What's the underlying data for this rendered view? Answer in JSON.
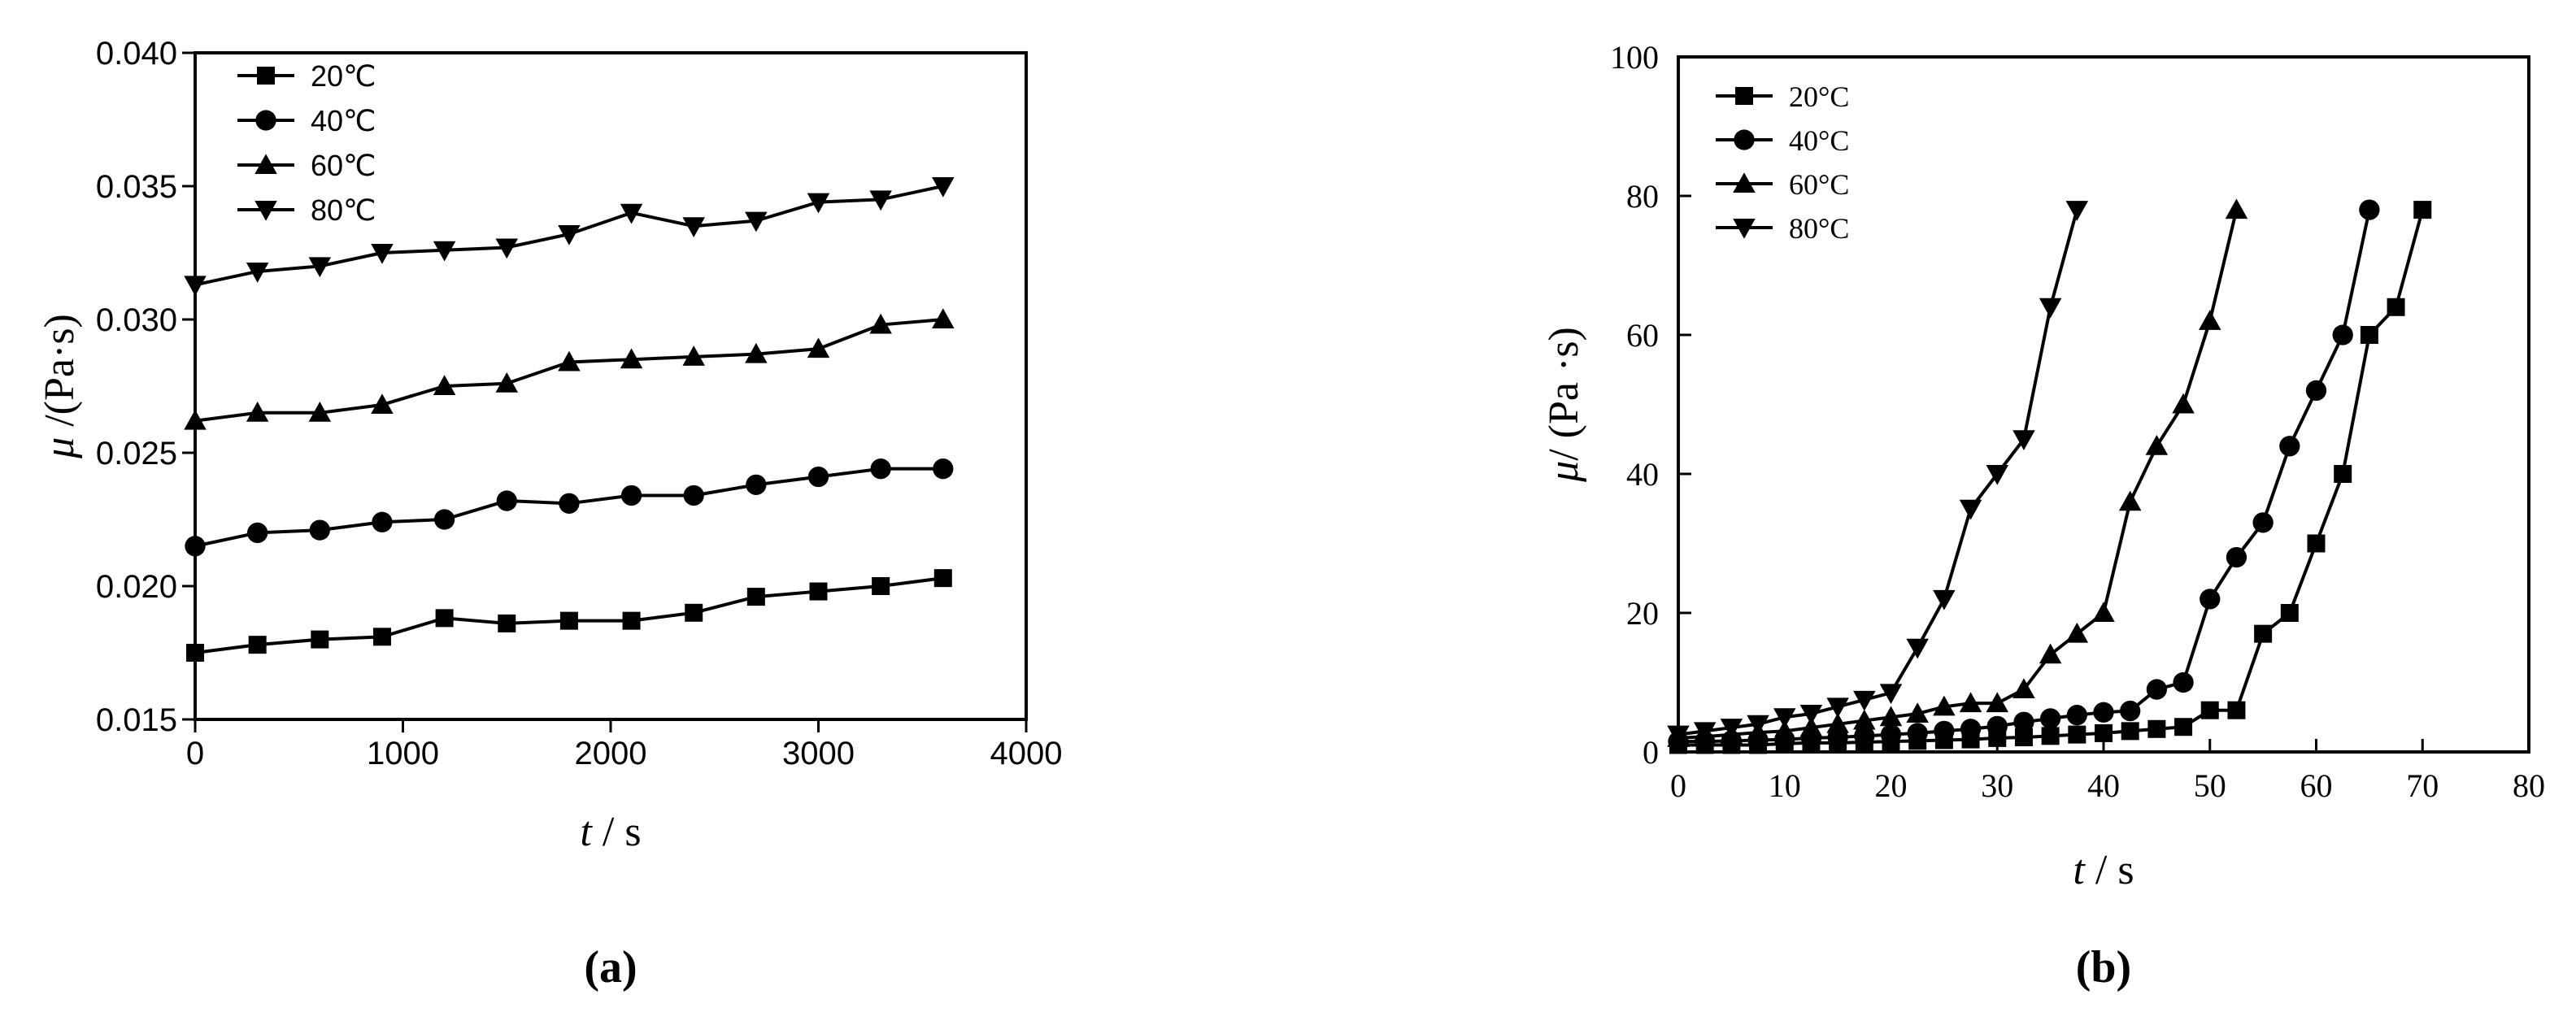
{
  "chart_data": [
    {
      "type": "line",
      "panel_label": "(a)",
      "xlabel_var": "t",
      "xlabel_unit": " / s",
      "ylabel_var": "μ",
      "ylabel_unit": " /(Pa·s)",
      "xlim": [
        0,
        4000
      ],
      "ylim": [
        0.015,
        0.04
      ],
      "xticks": [
        0,
        1000,
        2000,
        3000,
        4000
      ],
      "xtick_labels": [
        "0",
        "1000",
        "2000",
        "3000",
        "4000"
      ],
      "yticks": [
        0.015,
        0.02,
        0.025,
        0.03,
        0.035,
        0.04
      ],
      "ytick_labels": [
        "0.015",
        "0.020",
        "0.025",
        "0.030",
        "0.035",
        "0.040"
      ],
      "grid": false,
      "legend_position": "top-left",
      "x": [
        0,
        300,
        600,
        900,
        1200,
        1500,
        1800,
        2100,
        2400,
        2700,
        3000,
        3300,
        3600
      ],
      "series": [
        {
          "name": "20℃",
          "marker": "square",
          "values": [
            0.0175,
            0.0178,
            0.018,
            0.0181,
            0.0188,
            0.0186,
            0.0187,
            0.0187,
            0.019,
            0.0196,
            0.0198,
            0.02,
            0.0203
          ]
        },
        {
          "name": "40℃",
          "marker": "circle",
          "values": [
            0.0215,
            0.022,
            0.0221,
            0.0224,
            0.0225,
            0.0232,
            0.0231,
            0.0234,
            0.0234,
            0.0238,
            0.0241,
            0.0244,
            0.0244
          ]
        },
        {
          "name": "60℃",
          "marker": "triangle-up",
          "values": [
            0.0262,
            0.0265,
            0.0265,
            0.0268,
            0.0275,
            0.0276,
            0.0284,
            0.0285,
            0.0286,
            0.0287,
            0.0289,
            0.0298,
            0.03
          ]
        },
        {
          "name": "80℃",
          "marker": "triangle-down",
          "values": [
            0.0313,
            0.0318,
            0.032,
            0.0325,
            0.0326,
            0.0327,
            0.0332,
            0.034,
            0.0335,
            0.0337,
            0.0344,
            0.0345,
            0.035
          ]
        }
      ]
    },
    {
      "type": "line",
      "panel_label": "(b)",
      "xlabel_var": "t",
      "xlabel_unit": " / s",
      "ylabel_var": "μ",
      "ylabel_unit": "/ (Pa ·s)",
      "xlim": [
        0,
        80
      ],
      "ylim": [
        0,
        100
      ],
      "xticks": [
        0,
        10,
        20,
        30,
        40,
        50,
        60,
        70,
        80
      ],
      "xtick_labels": [
        "0",
        "10",
        "20",
        "30",
        "40",
        "50",
        "60",
        "70",
        "80"
      ],
      "yticks": [
        0,
        20,
        40,
        60,
        80,
        100
      ],
      "ytick_labels": [
        "0",
        "20",
        "40",
        "60",
        "80",
        "100"
      ],
      "grid": false,
      "legend_position": "top-left",
      "series": [
        {
          "name": "20°C",
          "marker": "square",
          "x": [
            0,
            2.5,
            5,
            7.5,
            10,
            12.5,
            15,
            17.5,
            20,
            22.5,
            25,
            27.5,
            30,
            32.5,
            35,
            37.5,
            40,
            42.5,
            45,
            47.5,
            50,
            52.5,
            55,
            57.5,
            60,
            62.5,
            65,
            67.5,
            70
          ],
          "values": [
            1,
            1,
            1,
            1,
            1.2,
            1.3,
            1.3,
            1.4,
            1.5,
            1.6,
            1.7,
            1.8,
            2,
            2.1,
            2.3,
            2.5,
            2.7,
            3,
            3.3,
            3.6,
            6,
            6,
            17,
            20,
            30,
            40,
            60,
            64,
            78
          ]
        },
        {
          "name": "40°C",
          "marker": "circle",
          "x": [
            0,
            2.5,
            5,
            7.5,
            10,
            12.5,
            15,
            17.5,
            20,
            22.5,
            25,
            27.5,
            30,
            32.5,
            35,
            37.5,
            40,
            42.5,
            45,
            47.5,
            50,
            52.5,
            55,
            57.5,
            60,
            62.5,
            65
          ],
          "values": [
            1.5,
            1.5,
            1.6,
            1.7,
            1.8,
            2,
            2.1,
            2.3,
            2.5,
            2.7,
            3,
            3.3,
            3.7,
            4.3,
            4.8,
            5.3,
            5.7,
            5.9,
            9,
            10,
            22,
            28,
            33,
            44,
            52,
            60,
            78
          ]
        },
        {
          "name": "60°C",
          "marker": "triangle-up",
          "x": [
            0,
            2.5,
            5,
            7.5,
            10,
            12.5,
            15,
            17.5,
            20,
            22.5,
            25,
            27.5,
            30,
            32.5,
            35,
            37.5,
            40,
            42.5,
            45,
            47.5,
            50,
            52.5
          ],
          "values": [
            2,
            2.2,
            2.5,
            2.8,
            3,
            3.5,
            4,
            4.5,
            5,
            5.5,
            6.5,
            7,
            7,
            9,
            14,
            17,
            20,
            36,
            44,
            50,
            62,
            78
          ]
        },
        {
          "name": "80°C",
          "marker": "triangle-down",
          "x": [
            0,
            2.5,
            5,
            7.5,
            10,
            12.5,
            15,
            17.5,
            20,
            22.5,
            25,
            27.5,
            30,
            32.5,
            35,
            37.5
          ],
          "values": [
            2.5,
            3,
            3.5,
            4,
            5,
            5.5,
            6.5,
            7.5,
            8.5,
            15,
            22,
            35,
            40,
            45,
            64,
            78
          ]
        }
      ]
    }
  ]
}
